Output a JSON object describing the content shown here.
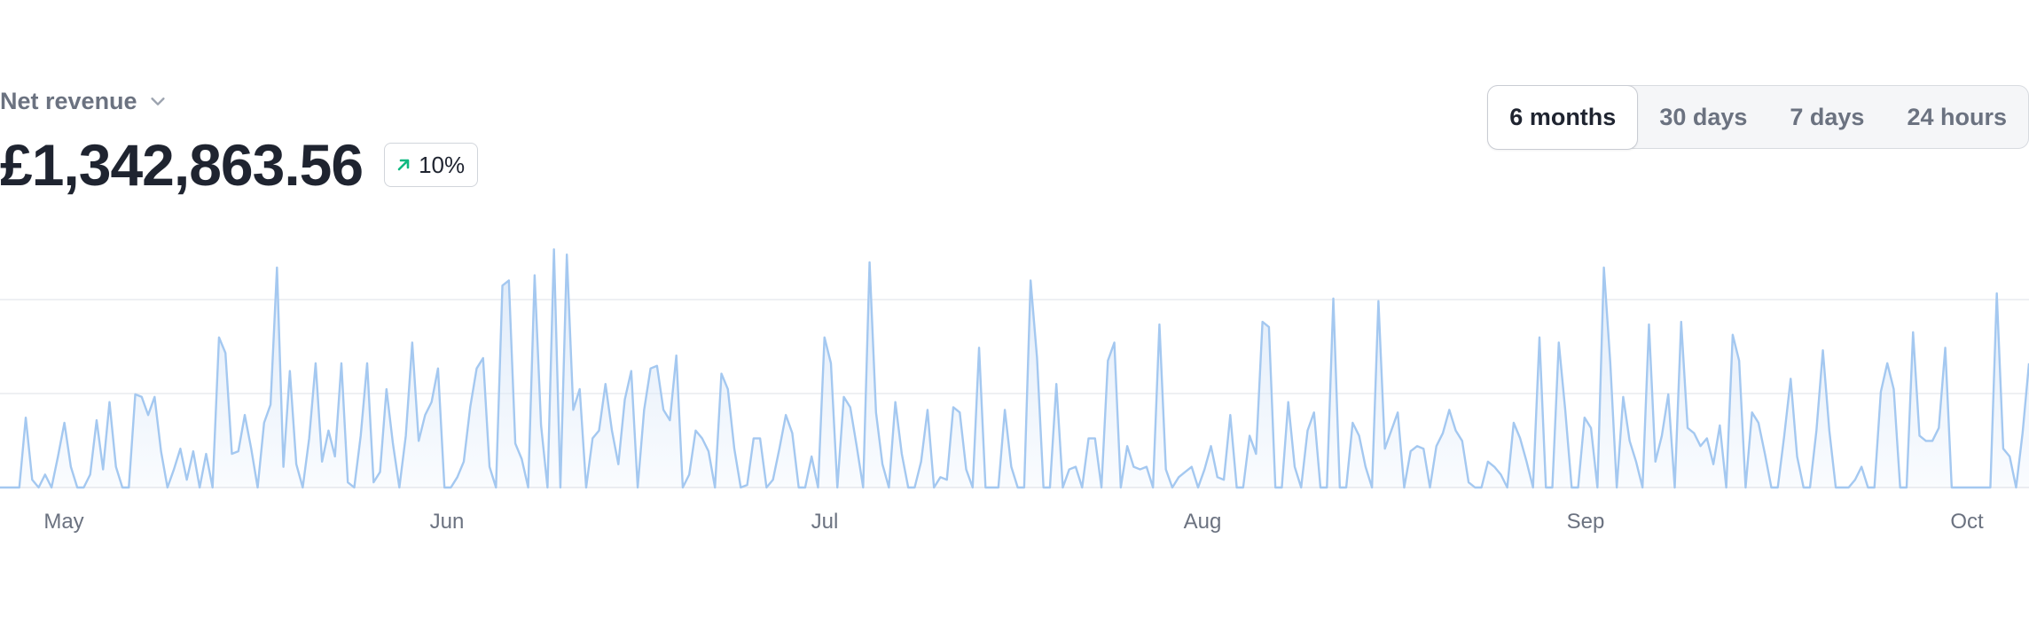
{
  "header": {
    "metric_label": "Net revenue",
    "metric_icon": "chevron-down-icon",
    "value": "£1,342,863.56",
    "delta": {
      "label": "10%",
      "direction": "up",
      "icon": "arrow-up-right-icon",
      "color": "#10b981"
    }
  },
  "range_selector": {
    "options": [
      "6 months",
      "30 days",
      "7 days",
      "24 hours"
    ],
    "selected": "6 months"
  },
  "chart_data": {
    "type": "area",
    "title": "",
    "xlabel": "",
    "ylabel": "",
    "x_tick_labels": [
      "May",
      "Jun",
      "Jul",
      "Aug",
      "Sep",
      "Oct"
    ],
    "ylim": [
      0,
      100
    ],
    "grid": "horizontal",
    "line_color": "#a4c8f0",
    "fill_color": "#dce9f9",
    "series": [
      {
        "values": [
          0,
          0,
          0,
          0,
          27,
          3,
          0,
          5,
          0,
          12,
          25,
          8,
          0,
          0,
          5,
          26,
          7,
          33,
          8,
          0,
          0,
          36,
          35,
          28,
          35,
          14,
          0,
          7,
          15,
          3,
          14,
          0,
          13,
          0,
          58,
          52,
          13,
          14,
          28,
          15,
          0,
          25,
          32,
          85,
          8,
          45,
          9,
          0,
          19,
          48,
          10,
          22,
          12,
          48,
          2,
          0,
          20,
          48,
          2,
          6,
          38,
          17,
          0,
          20,
          56,
          18,
          28,
          33,
          46,
          0,
          0,
          4,
          10,
          31,
          46,
          50,
          8,
          0,
          78,
          80,
          17,
          11,
          0,
          82,
          24,
          0,
          92,
          0,
          90,
          30,
          38,
          0,
          19,
          22,
          40,
          22,
          9,
          34,
          45,
          0,
          30,
          46,
          47,
          30,
          26,
          51,
          0,
          5,
          22,
          19,
          14,
          0,
          44,
          38,
          15,
          0,
          1,
          19,
          19,
          0,
          3,
          15,
          28,
          21,
          0,
          0,
          12,
          0,
          58,
          48,
          0,
          35,
          31,
          16,
          0,
          87,
          29,
          9,
          0,
          33,
          13,
          0,
          0,
          10,
          30,
          0,
          4,
          3,
          31,
          29,
          7,
          0,
          54,
          0,
          0,
          0,
          30,
          8,
          0,
          0,
          80,
          50,
          0,
          0,
          40,
          0,
          7,
          8,
          0,
          19,
          19,
          0,
          49,
          56,
          0,
          16,
          8,
          7,
          8,
          0,
          63,
          7,
          0,
          4,
          6,
          8,
          0,
          7,
          16,
          4,
          3,
          28,
          0,
          0,
          20,
          13,
          64,
          62,
          0,
          0,
          33,
          8,
          0,
          22,
          29,
          0,
          0,
          73,
          0,
          0,
          25,
          20,
          8,
          0,
          72,
          15,
          22,
          29,
          0,
          14,
          16,
          15,
          0,
          16,
          21,
          30,
          22,
          18,
          2,
          0,
          0,
          10,
          8,
          5,
          0,
          25,
          19,
          10,
          0,
          58,
          0,
          0,
          56,
          30,
          0,
          0,
          27,
          23,
          0,
          85,
          48,
          0,
          35,
          18,
          10,
          0,
          63,
          10,
          20,
          36,
          0,
          64,
          23,
          21,
          16,
          19,
          9,
          24,
          0,
          59,
          49,
          0,
          29,
          25,
          13,
          0,
          0,
          20,
          42,
          12,
          0,
          0,
          22,
          53,
          22,
          0,
          0,
          0,
          3,
          8,
          0,
          0,
          37,
          48,
          38,
          0,
          0,
          60,
          20,
          18,
          18,
          23,
          54,
          0,
          0,
          0,
          0,
          0,
          0,
          0,
          75,
          15,
          12,
          0,
          21,
          48
        ]
      }
    ]
  }
}
